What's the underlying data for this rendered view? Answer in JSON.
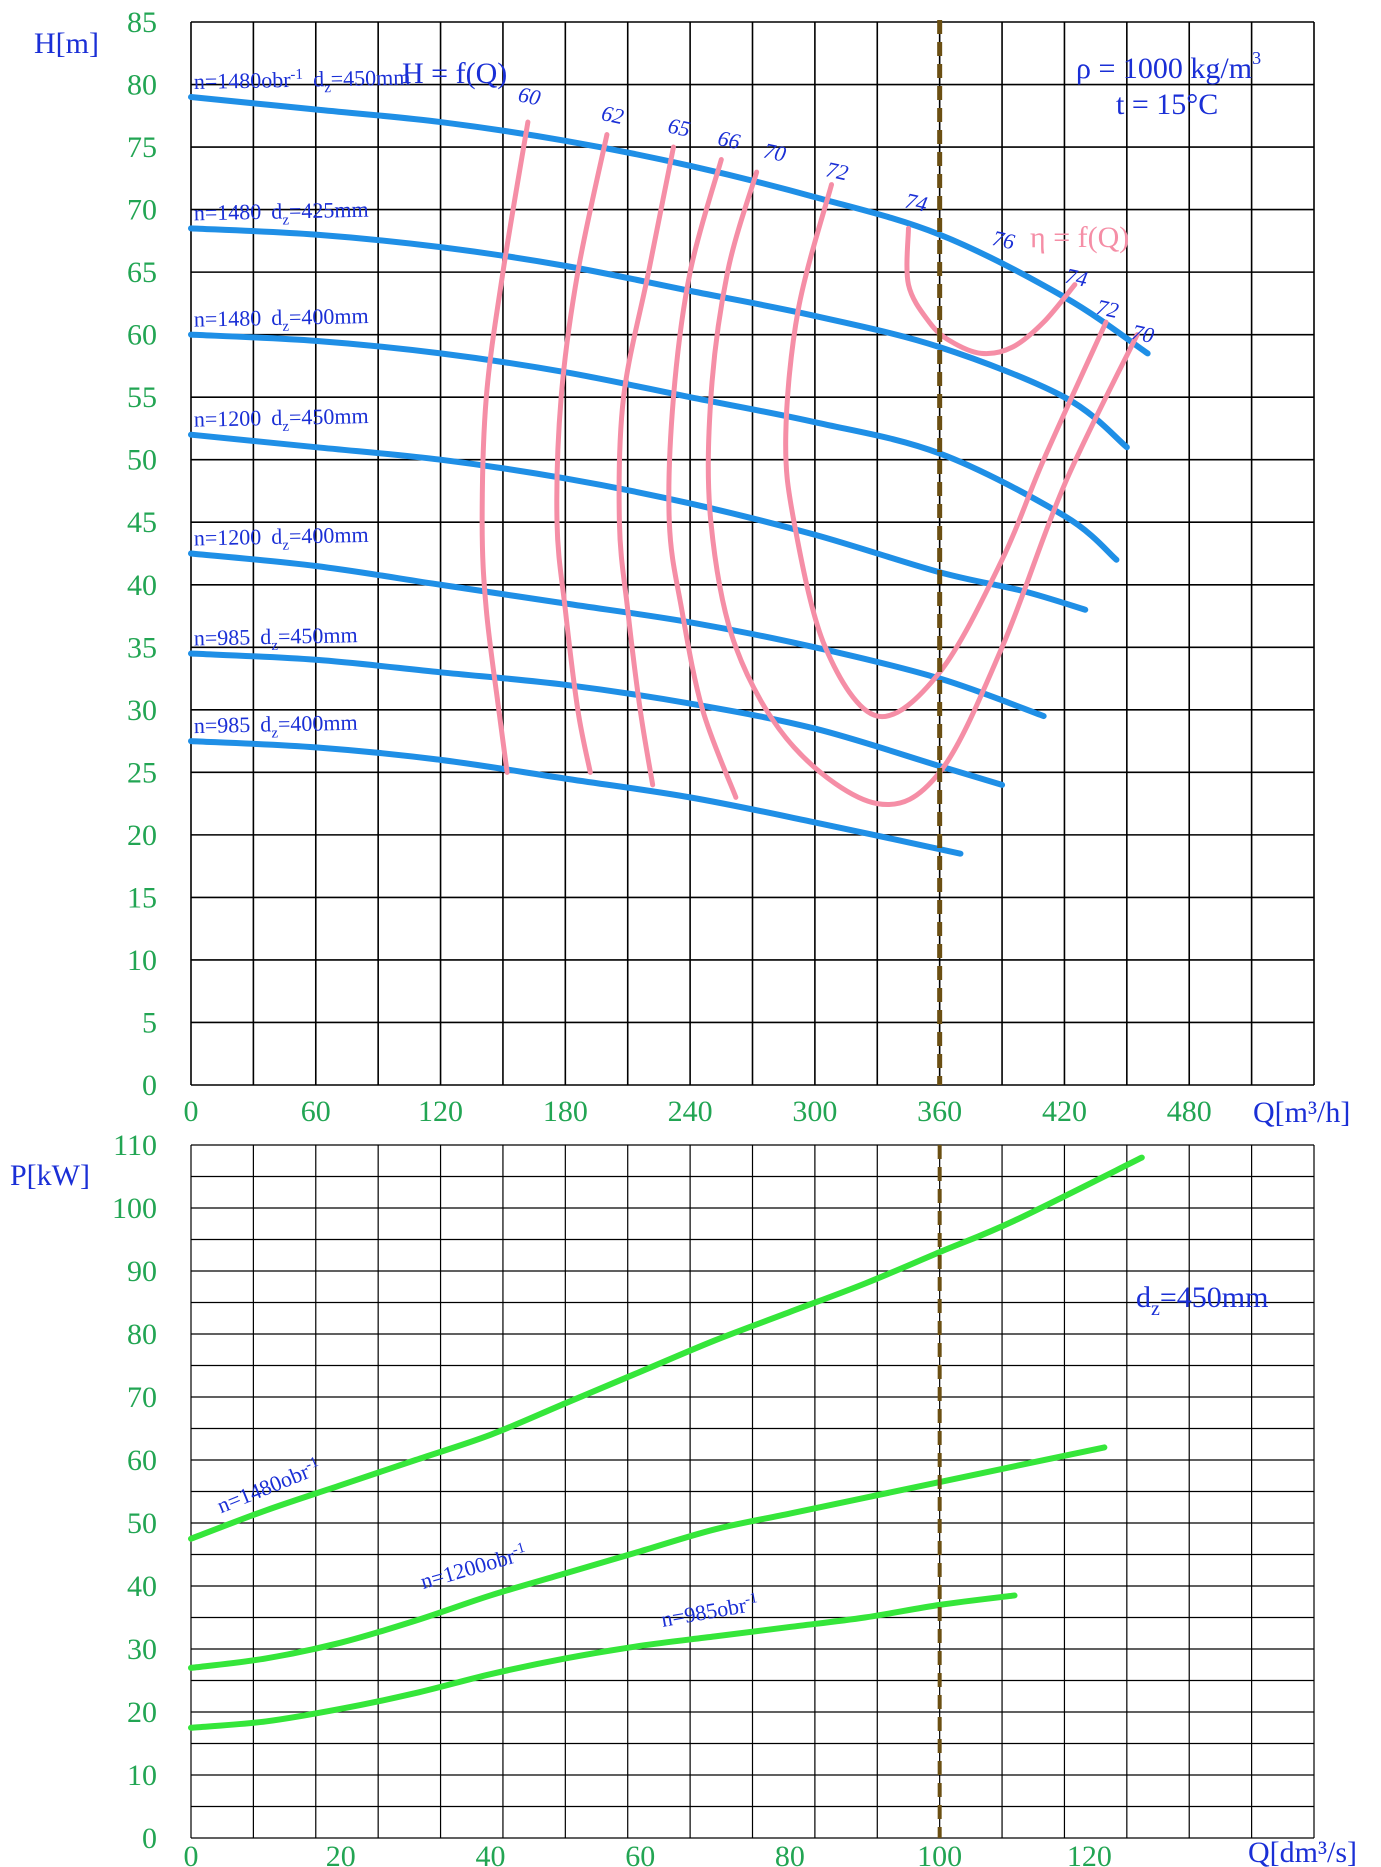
{
  "chart_data": [
    {
      "type": "line",
      "title": "H = f(Q)",
      "ylabel": "H[m]",
      "xlabel": "Q[m³/h]",
      "xlim": [
        0,
        540
      ],
      "ylim": [
        0,
        85
      ],
      "x_ticks": [
        "0",
        "60",
        "120",
        "180",
        "240",
        "300",
        "360",
        "420",
        "480"
      ],
      "y_ticks": [
        "0",
        "5",
        "10",
        "15",
        "20",
        "25",
        "30",
        "35",
        "40",
        "45",
        "50",
        "55",
        "60",
        "65",
        "70",
        "75",
        "80",
        "85"
      ],
      "grid": true,
      "info": {
        "density_label": "ρ = 1000 kg/m",
        "density_sup": "3",
        "temp_label": "t = 15°C",
        "eta_title": "η = f(Q)"
      },
      "colors": {
        "head": "#1f8fe6",
        "efficiency": "#f58ea6",
        "ticks": "#22a553",
        "labels": "#1a2fd6",
        "operating_line": "#6b4f12"
      },
      "operating_line_q": 360,
      "series": [
        {
          "name": "n=1480obr⁻¹ d_z=450mm",
          "label_a": "n=1480obr",
          "label_sup": "-1",
          "label_b": "d",
          "label_sub": "z",
          "label_c": "=450mm",
          "x": [
            0,
            60,
            120,
            180,
            240,
            300,
            360,
            420,
            460
          ],
          "y": [
            79,
            78,
            77,
            75.5,
            73.5,
            71,
            68,
            63,
            58.5
          ]
        },
        {
          "name": "n=1480 d_z=425mm",
          "label_a": "n=1480",
          "label_sup": "",
          "label_b": "d",
          "label_sub": "z",
          "label_c": "=425mm",
          "x": [
            0,
            60,
            120,
            180,
            240,
            300,
            360,
            420,
            450
          ],
          "y": [
            68.5,
            68,
            67,
            65.5,
            63.5,
            61.5,
            59,
            55,
            51
          ]
        },
        {
          "name": "n=1480 d_z=400mm",
          "label_a": "n=1480",
          "label_sup": "",
          "label_b": "d",
          "label_sub": "z",
          "label_c": "=400mm",
          "x": [
            0,
            60,
            120,
            180,
            240,
            300,
            360,
            420,
            445
          ],
          "y": [
            60,
            59.5,
            58.5,
            57,
            55,
            53,
            50.5,
            45.5,
            42
          ]
        },
        {
          "name": "n=1200 d_z=450mm",
          "label_a": "n=1200",
          "label_sup": "",
          "label_b": "d",
          "label_sub": "z",
          "label_c": "=450mm",
          "x": [
            0,
            60,
            120,
            180,
            240,
            300,
            360,
            400,
            430
          ],
          "y": [
            52,
            51,
            50,
            48.5,
            46.5,
            44,
            41,
            39.5,
            38
          ]
        },
        {
          "name": "n=1200 d_z=400mm",
          "label_a": "n=1200",
          "label_sup": "",
          "label_b": "d",
          "label_sub": "z",
          "label_c": "=400mm",
          "x": [
            0,
            60,
            120,
            180,
            240,
            300,
            360,
            410
          ],
          "y": [
            42.5,
            41.5,
            40,
            38.5,
            37,
            35,
            32.5,
            29.5
          ]
        },
        {
          "name": "n=985 d_z=450mm",
          "label_a": "n=985",
          "label_sup": "",
          "label_b": "d",
          "label_sub": "z",
          "label_c": "=450mm",
          "x": [
            0,
            60,
            120,
            180,
            240,
            300,
            360,
            390
          ],
          "y": [
            34.5,
            34,
            33,
            32,
            30.5,
            28.5,
            25.5,
            24
          ]
        },
        {
          "name": "n=985 d_z=400mm",
          "label_a": "n=985",
          "label_sup": "",
          "label_b": "d",
          "label_sub": "z",
          "label_c": "=400mm",
          "x": [
            0,
            60,
            120,
            180,
            240,
            300,
            370
          ],
          "y": [
            27.5,
            27,
            26,
            24.5,
            23,
            21,
            18.5
          ]
        }
      ],
      "efficiency_curves": [
        {
          "label": "60",
          "x": [
            162,
            150,
            142,
            140,
            142,
            148,
            152
          ],
          "y": [
            77,
            65,
            55,
            45,
            38,
            30,
            25
          ]
        },
        {
          "label": "62",
          "x": [
            200,
            186,
            178,
            176,
            180,
            186,
            192
          ],
          "y": [
            76,
            65,
            55,
            45,
            38,
            30,
            25
          ]
        },
        {
          "label": "65",
          "x": [
            232,
            220,
            208,
            206,
            210,
            216,
            222
          ],
          "y": [
            75,
            65,
            55,
            45,
            38,
            30,
            24
          ]
        },
        {
          "label": "66",
          "x": [
            255,
            240,
            232,
            230,
            236,
            246,
            262
          ],
          "y": [
            74,
            65,
            55,
            45,
            38,
            30,
            23
          ]
        },
        {
          "label": "70",
          "x": [
            272,
            258,
            250,
            250,
            262,
            290,
            330,
            360,
            390,
            420,
            455
          ],
          "y": [
            73,
            65,
            55,
            45,
            35,
            27,
            22.5,
            25,
            35,
            48,
            60
          ]
        },
        {
          "label": "72",
          "x": [
            308,
            292,
            286,
            290,
            305,
            330,
            360,
            390,
            410,
            440
          ],
          "y": [
            72,
            62,
            52,
            45,
            35,
            29.5,
            33,
            42,
            50,
            61
          ]
        },
        {
          "label": "74",
          "x": [
            345,
            345,
            355,
            365,
            380,
            395,
            410,
            425
          ],
          "y": [
            68.5,
            64,
            61,
            59.5,
            58.5,
            59,
            61,
            64
          ]
        }
      ],
      "efficiency_labels": [
        {
          "text": "60",
          "x": 162,
          "y": 78.5
        },
        {
          "text": "62",
          "x": 202,
          "y": 77
        },
        {
          "text": "65",
          "x": 234,
          "y": 76
        },
        {
          "text": "66",
          "x": 258,
          "y": 75
        },
        {
          "text": "70",
          "x": 280,
          "y": 74
        },
        {
          "text": "72",
          "x": 310,
          "y": 72.5
        },
        {
          "text": "74",
          "x": 348,
          "y": 70
        },
        {
          "text": "76",
          "x": 390,
          "y": 67
        },
        {
          "text": "74",
          "x": 425,
          "y": 64
        },
        {
          "text": "72",
          "x": 440,
          "y": 61.5
        },
        {
          "text": "70",
          "x": 457,
          "y": 59.5
        }
      ]
    },
    {
      "type": "line",
      "ylabel": "P[kW]",
      "xlabel": "Q[dm³/s]",
      "xlim": [
        0,
        150
      ],
      "ylim": [
        0,
        110
      ],
      "x_ticks": [
        "0",
        "20",
        "40",
        "60",
        "80",
        "100",
        "120"
      ],
      "y_ticks": [
        "0",
        "10",
        "20",
        "30",
        "40",
        "50",
        "60",
        "70",
        "80",
        "90",
        "100",
        "110"
      ],
      "grid": true,
      "info": {
        "dz_label": "d",
        "dz_sub": "z",
        "dz_value": "=450mm"
      },
      "colors": {
        "power": "#35e63a"
      },
      "operating_line_q": 100,
      "series": [
        {
          "name": "n=1480obr⁻¹",
          "label_a": "n=1480obr",
          "label_sup": "-1",
          "x": [
            0,
            10,
            20,
            30,
            40,
            50,
            60,
            70,
            80,
            90,
            100,
            110,
            127
          ],
          "y": [
            47.5,
            52,
            56,
            60,
            64,
            69,
            74,
            79,
            83.5,
            88,
            93,
            98,
            108
          ]
        },
        {
          "name": "n=1200obr⁻¹",
          "label_a": "n=1200obr",
          "label_sup": "-1",
          "x": [
            0,
            10,
            20,
            30,
            40,
            50,
            60,
            70,
            80,
            90,
            100,
            110,
            122
          ],
          "y": [
            27,
            28.5,
            31,
            34.5,
            38.5,
            42,
            45.5,
            49,
            51.5,
            54,
            56.5,
            59,
            62
          ]
        },
        {
          "name": "n=985obr⁻¹",
          "label_a": "n=985obr",
          "label_sup": "-1",
          "x": [
            0,
            10,
            20,
            30,
            40,
            50,
            60,
            70,
            80,
            90,
            100,
            110
          ],
          "y": [
            17.5,
            18.5,
            20.5,
            23,
            26,
            28.5,
            30.5,
            32,
            33.5,
            35,
            37,
            38.5
          ]
        }
      ]
    }
  ]
}
